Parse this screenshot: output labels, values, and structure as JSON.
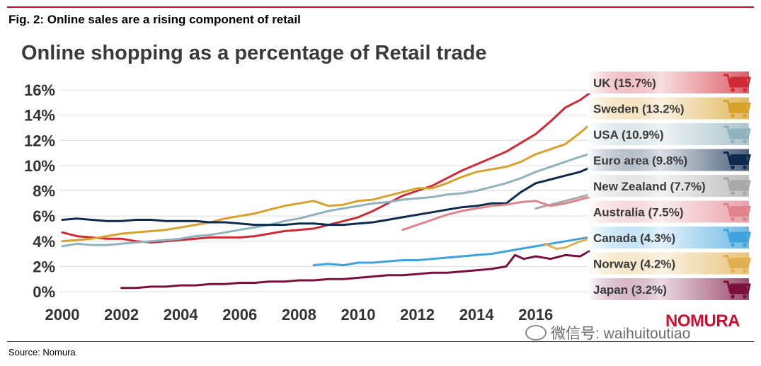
{
  "figure": {
    "caption": "Fig. 2: Online sales are a rising component of retail",
    "source": "Source: Nomura",
    "brand": "NOMURA",
    "watermark": "微信号: waihuitoutiao"
  },
  "chart_data": {
    "type": "line",
    "title": "Online shopping as a percentage of Retail trade",
    "xlabel": "",
    "ylabel": "",
    "xlim": [
      2000,
      2017.8
    ],
    "ylim": [
      0,
      16
    ],
    "x_ticks": [
      "2000",
      "2002",
      "2004",
      "2006",
      "2008",
      "2010",
      "2012",
      "2014",
      "2016"
    ],
    "y_ticks": [
      "0%",
      "2%",
      "4%",
      "6%",
      "8%",
      "10%",
      "12%",
      "14%",
      "16%"
    ],
    "grid": true,
    "legend_position": "right",
    "series": [
      {
        "name": "UK",
        "legend": "UK (15.7%)",
        "color": "#d02a36",
        "x": [
          2000,
          2000.5,
          2001,
          2001.5,
          2002,
          2002.5,
          2003,
          2003.5,
          2004,
          2004.5,
          2005,
          2005.5,
          2006,
          2006.5,
          2007,
          2007.5,
          2008,
          2008.5,
          2009,
          2009.5,
          2010,
          2010.5,
          2011,
          2011.5,
          2012,
          2012.5,
          2013,
          2013.5,
          2014,
          2014.5,
          2015,
          2015.5,
          2016,
          2016.5,
          2017,
          2017.5,
          2017.8
        ],
        "y": [
          4.7,
          4.4,
          4.3,
          4.2,
          4.2,
          4.0,
          3.9,
          4.0,
          4.1,
          4.2,
          4.3,
          4.3,
          4.3,
          4.4,
          4.6,
          4.8,
          4.9,
          5.0,
          5.3,
          5.6,
          5.9,
          6.4,
          7.0,
          7.6,
          8.0,
          8.4,
          9.0,
          9.6,
          10.1,
          10.6,
          11.1,
          11.8,
          12.5,
          13.5,
          14.6,
          15.2,
          15.7
        ]
      },
      {
        "name": "Sweden",
        "legend": "Sweden (13.2%)",
        "color": "#d9a02a",
        "x": [
          2000,
          2000.5,
          2001,
          2001.5,
          2002,
          2002.5,
          2003,
          2003.5,
          2004,
          2004.5,
          2005,
          2005.5,
          2006,
          2006.5,
          2007,
          2007.5,
          2008,
          2008.5,
          2009,
          2009.5,
          2010,
          2010.5,
          2011,
          2011.5,
          2012,
          2012.5,
          2013,
          2013.5,
          2014,
          2014.5,
          2015,
          2015.5,
          2016,
          2016.5,
          2017,
          2017.5,
          2017.8
        ],
        "y": [
          4.0,
          4.1,
          4.2,
          4.4,
          4.6,
          4.7,
          4.8,
          4.9,
          5.1,
          5.3,
          5.5,
          5.8,
          6.0,
          6.2,
          6.5,
          6.8,
          7.0,
          7.2,
          6.8,
          6.9,
          7.2,
          7.3,
          7.6,
          7.9,
          8.2,
          8.2,
          8.6,
          9.1,
          9.5,
          9.7,
          9.9,
          10.3,
          10.9,
          11.3,
          11.7,
          12.6,
          13.2
        ]
      },
      {
        "name": "USA",
        "legend": "USA (10.9%)",
        "color": "#8fb2bc",
        "x": [
          2000,
          2000.5,
          2001,
          2001.5,
          2002,
          2002.5,
          2003,
          2003.5,
          2004,
          2004.5,
          2005,
          2005.5,
          2006,
          2006.5,
          2007,
          2007.5,
          2008,
          2008.5,
          2009,
          2009.5,
          2010,
          2010.5,
          2011,
          2011.5,
          2012,
          2012.5,
          2013,
          2013.5,
          2014,
          2014.5,
          2015,
          2015.5,
          2016,
          2016.5,
          2017,
          2017.5,
          2017.8
        ],
        "y": [
          3.6,
          3.8,
          3.7,
          3.7,
          3.8,
          3.9,
          4.0,
          4.1,
          4.2,
          4.4,
          4.5,
          4.7,
          4.9,
          5.1,
          5.3,
          5.6,
          5.8,
          6.1,
          6.4,
          6.6,
          6.8,
          7.0,
          7.1,
          7.3,
          7.4,
          7.5,
          7.7,
          7.8,
          8.0,
          8.3,
          8.6,
          9.0,
          9.5,
          9.9,
          10.3,
          10.7,
          10.9
        ]
      },
      {
        "name": "Euro area",
        "legend": "Euro area (9.8%)",
        "color": "#0e2b4f",
        "x": [
          2000,
          2000.5,
          2001,
          2001.5,
          2002,
          2002.5,
          2003,
          2003.5,
          2004,
          2004.5,
          2005,
          2005.5,
          2006,
          2006.5,
          2007,
          2007.5,
          2008,
          2008.5,
          2009,
          2009.5,
          2010,
          2010.5,
          2011,
          2011.5,
          2012,
          2012.5,
          2013,
          2013.5,
          2014,
          2014.5,
          2015,
          2015.5,
          2016,
          2016.5,
          2017,
          2017.5,
          2017.8
        ],
        "y": [
          5.7,
          5.8,
          5.7,
          5.6,
          5.6,
          5.7,
          5.7,
          5.6,
          5.6,
          5.6,
          5.5,
          5.5,
          5.4,
          5.3,
          5.3,
          5.3,
          5.4,
          5.4,
          5.3,
          5.3,
          5.4,
          5.5,
          5.7,
          5.9,
          6.1,
          6.3,
          6.5,
          6.7,
          6.8,
          7.0,
          7.0,
          7.9,
          8.6,
          8.9,
          9.2,
          9.5,
          9.8
        ]
      },
      {
        "name": "New Zealand",
        "legend": "New Zealand (7.7%)",
        "color": "#a8a8a8",
        "x": [
          2016,
          2016.5,
          2017,
          2017.5,
          2017.8
        ],
        "y": [
          6.6,
          6.9,
          7.2,
          7.5,
          7.7
        ]
      },
      {
        "name": "Australia",
        "legend": "Australia (7.5%)",
        "color": "#e0838b",
        "x": [
          2011.5,
          2012,
          2012.5,
          2013,
          2013.5,
          2014,
          2014.5,
          2015,
          2015.5,
          2016,
          2016.5,
          2017,
          2017.5,
          2017.8
        ],
        "y": [
          4.9,
          5.3,
          5.7,
          6.1,
          6.4,
          6.6,
          6.8,
          6.9,
          7.1,
          7.2,
          6.8,
          7.0,
          7.3,
          7.5
        ]
      },
      {
        "name": "Canada",
        "legend": "Canada (4.3%)",
        "color": "#3ea3dc",
        "x": [
          2008.5,
          2009,
          2009.5,
          2010,
          2010.5,
          2011,
          2011.5,
          2012,
          2012.5,
          2013,
          2013.5,
          2014,
          2014.5,
          2015,
          2015.5,
          2016,
          2016.5,
          2017,
          2017.5,
          2017.8
        ],
        "y": [
          2.1,
          2.2,
          2.1,
          2.3,
          2.3,
          2.4,
          2.5,
          2.5,
          2.6,
          2.7,
          2.8,
          2.9,
          3.0,
          3.2,
          3.4,
          3.6,
          3.8,
          4.0,
          4.2,
          4.3
        ]
      },
      {
        "name": "Norway",
        "legend": "Norway (4.2%)",
        "color": "#e0b050",
        "x": [
          2016.3,
          2016.7,
          2017,
          2017.4,
          2017.8
        ],
        "y": [
          3.8,
          3.4,
          3.5,
          3.9,
          4.2
        ]
      },
      {
        "name": "Japan",
        "legend": "Japan (3.2%)",
        "color": "#7a0f3c",
        "x": [
          2002,
          2002.5,
          2003,
          2003.5,
          2004,
          2004.5,
          2005,
          2005.5,
          2006,
          2006.5,
          2007,
          2007.5,
          2008,
          2008.5,
          2009,
          2009.5,
          2010,
          2010.5,
          2011,
          2011.5,
          2012,
          2012.5,
          2013,
          2013.5,
          2014,
          2014.5,
          2015,
          2015.3,
          2015.6,
          2016,
          2016.5,
          2017,
          2017.5,
          2017.8
        ],
        "y": [
          0.3,
          0.3,
          0.4,
          0.4,
          0.5,
          0.5,
          0.6,
          0.6,
          0.7,
          0.7,
          0.8,
          0.8,
          0.9,
          0.9,
          1.0,
          1.0,
          1.1,
          1.2,
          1.3,
          1.3,
          1.4,
          1.5,
          1.5,
          1.6,
          1.7,
          1.8,
          2.0,
          2.9,
          2.6,
          2.8,
          2.6,
          2.9,
          2.8,
          3.2
        ]
      }
    ]
  }
}
